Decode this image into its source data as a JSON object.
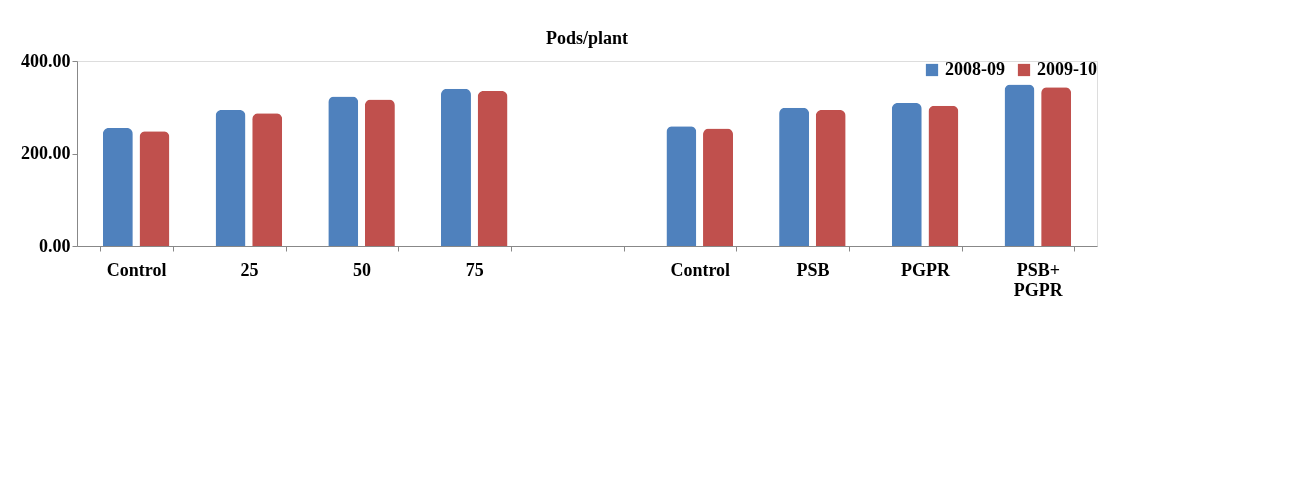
{
  "chart_data": {
    "type": "bar",
    "title": "Pods/plant",
    "categories": [
      "Control",
      "25",
      "50",
      "75",
      null,
      "Control",
      "PSB",
      "PGPR",
      "PSB+ PGPR"
    ],
    "series": [
      {
        "name": "2008-09",
        "color": "#4f81bd",
        "values": [
          255,
          294,
          323,
          340,
          null,
          259,
          299,
          309,
          349
        ]
      },
      {
        "name": "2009-10",
        "color": "#c0504d",
        "values": [
          248,
          287,
          317,
          335,
          null,
          254,
          294,
          303,
          343
        ]
      }
    ],
    "ylim": [
      0,
      400
    ],
    "yticks": [
      {
        "value": 0,
        "label": "0.00"
      },
      {
        "value": 200,
        "label": "200.00"
      },
      {
        "value": 400,
        "label": "400.00"
      }
    ],
    "grid": false,
    "legend": "top right"
  }
}
